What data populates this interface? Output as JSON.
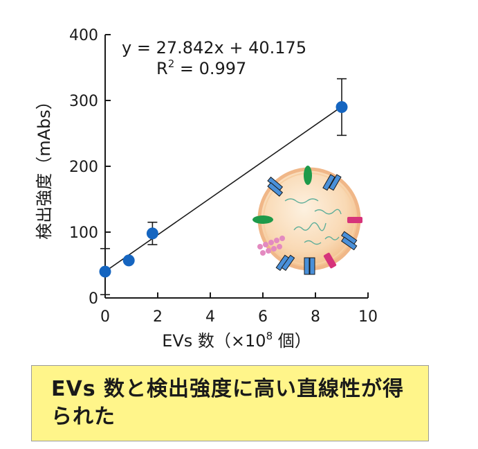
{
  "chart_data": {
    "type": "scatter",
    "xlabel_main": "EVs 数（×10",
    "xlabel_sup": "8",
    "xlabel_end": " 個）",
    "ylabel": "検出強度（mAbs）",
    "xlim": [
      0,
      10
    ],
    "ylim": [
      0,
      400
    ],
    "x_ticks": [
      "0",
      "2",
      "4",
      "6",
      "8",
      "10"
    ],
    "y_ticks": [
      "0",
      "100",
      "200",
      "300",
      "400"
    ],
    "points": [
      {
        "x": 0.0,
        "y": 40,
        "err": 35
      },
      {
        "x": 0.9,
        "y": 57,
        "err": 0
      },
      {
        "x": 1.8,
        "y": 98,
        "err": 17
      },
      {
        "x": 9.0,
        "y": 290,
        "err": 43
      }
    ],
    "fit": {
      "slope": 27.842,
      "intercept": 40.175,
      "x_range": [
        0,
        9
      ]
    },
    "equation": "y = 27.842x + 40.175",
    "r2_prefix": "R",
    "r2_sup": "2",
    "r2_suffix": " = 0.997",
    "colors": {
      "point": "#1565c0",
      "line": "#1a1a1a"
    },
    "grid": false
  },
  "illustration": {
    "icon": "extracellular-vesicle-icon"
  },
  "note": {
    "text": "EVs 数と検出強度に高い直線性が得られた",
    "bg_color": "#fff58a"
  }
}
